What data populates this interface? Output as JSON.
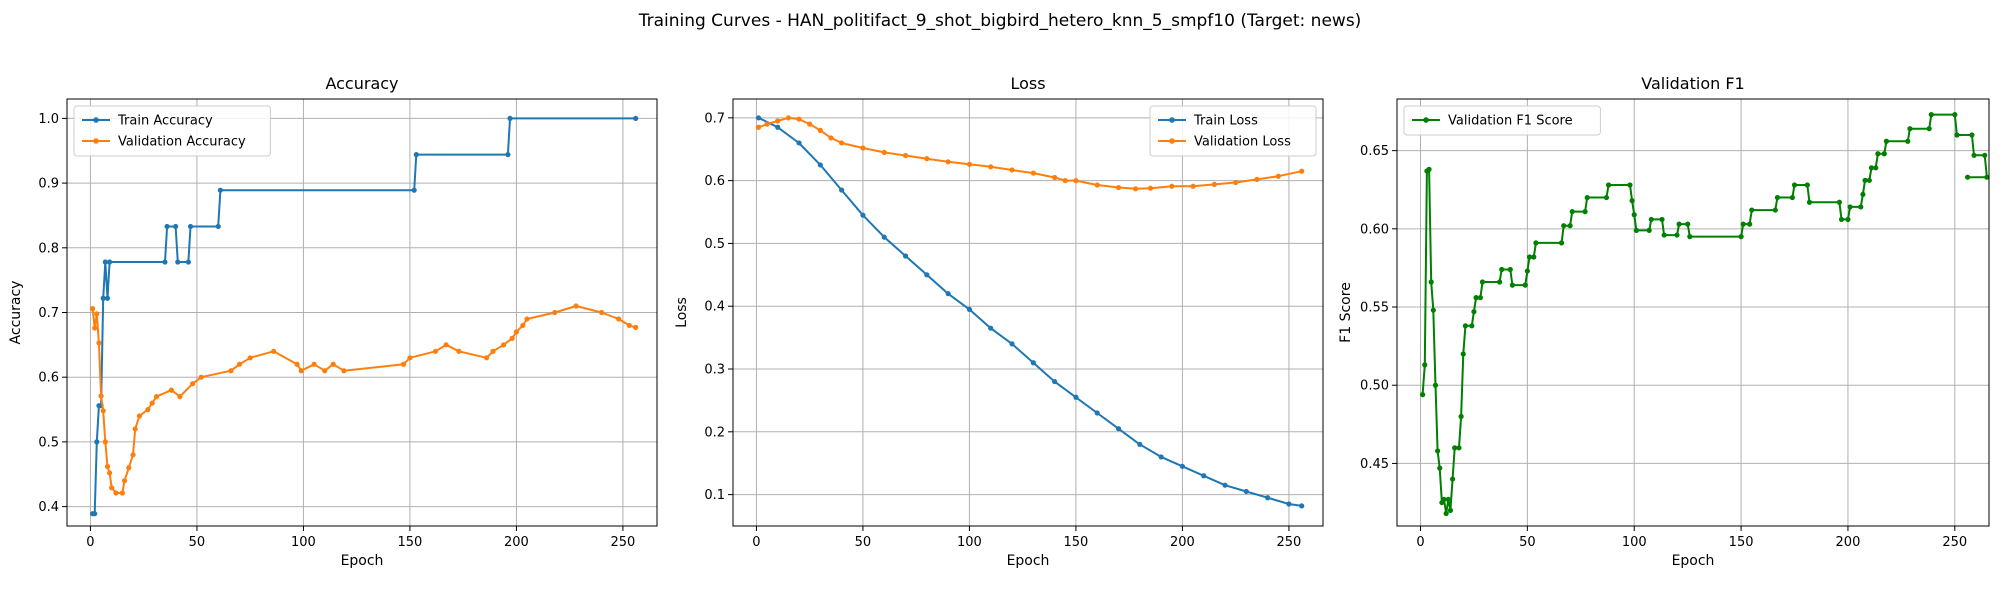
{
  "figure": {
    "suptitle": "Training Curves - HAN_politifact_9_shot_bigbird_hetero_knn_5_smpf10 (Target: news)"
  },
  "colors": {
    "train": "#1f77b4",
    "validation": "#ff7f0e",
    "f1": "#008000",
    "grid": "#b0b0b0"
  },
  "chart_data": [
    {
      "type": "line",
      "title": "Accuracy",
      "xlabel": "Epoch",
      "ylabel": "Accuracy",
      "xlim": [
        -11,
        266
      ],
      "ylim": [
        0.37,
        1.03
      ],
      "xticks": [
        0,
        50,
        100,
        150,
        200,
        250
      ],
      "yticks": [
        0.4,
        0.5,
        0.6,
        0.7,
        0.8,
        0.9,
        1.0
      ],
      "ytick_labels": [
        "0.4",
        "0.5",
        "0.6",
        "0.7",
        "0.8",
        "0.9",
        "1.0"
      ],
      "grid": true,
      "legend_position": "top-left",
      "series": [
        {
          "name": "Train Accuracy",
          "color": "#1f77b4",
          "points": [
            [
              1,
              0.389
            ],
            [
              2,
              0.389
            ],
            [
              3,
              0.5
            ],
            [
              4,
              0.556
            ],
            [
              5,
              0.556
            ],
            [
              6,
              0.722
            ],
            [
              7,
              0.778
            ],
            [
              8,
              0.722
            ],
            [
              9,
              0.778
            ],
            [
              35,
              0.778
            ],
            [
              36,
              0.833
            ],
            [
              40,
              0.833
            ],
            [
              41,
              0.778
            ],
            [
              46,
              0.778
            ],
            [
              47,
              0.833
            ],
            [
              60,
              0.833
            ],
            [
              61,
              0.889
            ],
            [
              152,
              0.889
            ],
            [
              153,
              0.944
            ],
            [
              196,
              0.944
            ],
            [
              197,
              1.0
            ],
            [
              256,
              1.0
            ]
          ]
        },
        {
          "name": "Validation Accuracy",
          "color": "#ff7f0e",
          "points": [
            [
              1,
              0.706
            ],
            [
              2,
              0.676
            ],
            [
              3,
              0.698
            ],
            [
              4,
              0.653
            ],
            [
              5,
              0.571
            ],
            [
              6,
              0.548
            ],
            [
              7,
              0.5
            ],
            [
              8,
              0.462
            ],
            [
              9,
              0.452
            ],
            [
              10,
              0.429
            ],
            [
              12,
              0.421
            ],
            [
              15,
              0.421
            ],
            [
              16,
              0.44
            ],
            [
              18,
              0.46
            ],
            [
              20,
              0.48
            ],
            [
              21,
              0.52
            ],
            [
              23,
              0.54
            ],
            [
              27,
              0.55
            ],
            [
              29,
              0.56
            ],
            [
              31,
              0.57
            ],
            [
              38,
              0.58
            ],
            [
              42,
              0.57
            ],
            [
              48,
              0.59
            ],
            [
              52,
              0.6
            ],
            [
              66,
              0.61
            ],
            [
              70,
              0.62
            ],
            [
              75,
              0.63
            ],
            [
              86,
              0.64
            ],
            [
              97,
              0.62
            ],
            [
              99,
              0.61
            ],
            [
              105,
              0.62
            ],
            [
              110,
              0.61
            ],
            [
              114,
              0.62
            ],
            [
              119,
              0.61
            ],
            [
              147,
              0.62
            ],
            [
              150,
              0.63
            ],
            [
              162,
              0.64
            ],
            [
              167,
              0.65
            ],
            [
              173,
              0.64
            ],
            [
              186,
              0.63
            ],
            [
              189,
              0.64
            ],
            [
              194,
              0.65
            ],
            [
              198,
              0.66
            ],
            [
              200,
              0.67
            ],
            [
              203,
              0.68
            ],
            [
              205,
              0.69
            ],
            [
              218,
              0.7
            ],
            [
              228,
              0.71
            ],
            [
              240,
              0.7
            ],
            [
              248,
              0.69
            ],
            [
              253,
              0.68
            ],
            [
              256,
              0.677
            ]
          ]
        }
      ]
    },
    {
      "type": "line",
      "title": "Loss",
      "xlabel": "Epoch",
      "ylabel": "Loss",
      "xlim": [
        -11,
        266
      ],
      "ylim": [
        0.05,
        0.73
      ],
      "xticks": [
        0,
        50,
        100,
        150,
        200,
        250
      ],
      "yticks": [
        0.1,
        0.2,
        0.3,
        0.4,
        0.5,
        0.6,
        0.7
      ],
      "ytick_labels": [
        "0.1",
        "0.2",
        "0.3",
        "0.4",
        "0.5",
        "0.6",
        "0.7"
      ],
      "grid": true,
      "legend_position": "top-right",
      "series": [
        {
          "name": "Train Loss",
          "color": "#1f77b4",
          "points": [
            [
              1,
              0.7
            ],
            [
              10,
              0.685
            ],
            [
              20,
              0.66
            ],
            [
              30,
              0.625
            ],
            [
              40,
              0.585
            ],
            [
              50,
              0.545
            ],
            [
              60,
              0.51
            ],
            [
              70,
              0.48
            ],
            [
              80,
              0.45
            ],
            [
              90,
              0.42
            ],
            [
              100,
              0.395
            ],
            [
              110,
              0.365
            ],
            [
              120,
              0.34
            ],
            [
              130,
              0.31
            ],
            [
              140,
              0.28
            ],
            [
              150,
              0.255
            ],
            [
              160,
              0.23
            ],
            [
              170,
              0.205
            ],
            [
              180,
              0.18
            ],
            [
              190,
              0.16
            ],
            [
              200,
              0.145
            ],
            [
              210,
              0.13
            ],
            [
              220,
              0.115
            ],
            [
              230,
              0.105
            ],
            [
              240,
              0.095
            ],
            [
              250,
              0.085
            ],
            [
              256,
              0.082
            ]
          ]
        },
        {
          "name": "Validation Loss",
          "color": "#ff7f0e",
          "points": [
            [
              1,
              0.685
            ],
            [
              5,
              0.69
            ],
            [
              10,
              0.695
            ],
            [
              15,
              0.7
            ],
            [
              20,
              0.698
            ],
            [
              25,
              0.69
            ],
            [
              30,
              0.68
            ],
            [
              35,
              0.668
            ],
            [
              40,
              0.66
            ],
            [
              50,
              0.652
            ],
            [
              60,
              0.645
            ],
            [
              70,
              0.64
            ],
            [
              80,
              0.635
            ],
            [
              90,
              0.63
            ],
            [
              100,
              0.626
            ],
            [
              110,
              0.622
            ],
            [
              120,
              0.617
            ],
            [
              130,
              0.612
            ],
            [
              140,
              0.605
            ],
            [
              145,
              0.6
            ],
            [
              150,
              0.6
            ],
            [
              160,
              0.593
            ],
            [
              170,
              0.589
            ],
            [
              178,
              0.587
            ],
            [
              185,
              0.588
            ],
            [
              195,
              0.591
            ],
            [
              205,
              0.591
            ],
            [
              215,
              0.594
            ],
            [
              225,
              0.597
            ],
            [
              235,
              0.602
            ],
            [
              245,
              0.607
            ],
            [
              256,
              0.615
            ]
          ]
        }
      ]
    },
    {
      "type": "line",
      "title": "Validation F1",
      "xlabel": "Epoch",
      "ylabel": "F1 Score",
      "xlim": [
        -11,
        266
      ],
      "ylim": [
        0.41,
        0.683
      ],
      "xticks": [
        0,
        50,
        100,
        150,
        200,
        250
      ],
      "yticks": [
        0.45,
        0.5,
        0.55,
        0.6,
        0.65
      ],
      "ytick_labels": [
        "0.45",
        "0.50",
        "0.55",
        "0.60",
        "0.65"
      ],
      "grid": true,
      "legend_position": "top-left",
      "series": [
        {
          "name": "Validation F1 Score",
          "color": "#008000",
          "points": [
            [
              1,
              0.494
            ],
            [
              2,
              0.513
            ],
            [
              3,
              0.637
            ],
            [
              4,
              0.638
            ],
            [
              5,
              0.566
            ],
            [
              6,
              0.548
            ],
            [
              7,
              0.5
            ],
            [
              8,
              0.458
            ],
            [
              9,
              0.447
            ],
            [
              10,
              0.425
            ],
            [
              11,
              0.427
            ],
            [
              12,
              0.418
            ],
            [
              13,
              0.427
            ],
            [
              14,
              0.42
            ],
            [
              15,
              0.44
            ],
            [
              16,
              0.46
            ],
            [
              18,
              0.46
            ],
            [
              19,
              0.48
            ],
            [
              20,
              0.52
            ],
            [
              21,
              0.538
            ],
            [
              24,
              0.538
            ],
            [
              25,
              0.547
            ],
            [
              26,
              0.556
            ],
            [
              28,
              0.556
            ],
            [
              29,
              0.566
            ],
            [
              37,
              0.566
            ],
            [
              38,
              0.574
            ],
            [
              42,
              0.574
            ],
            [
              43,
              0.564
            ],
            [
              49,
              0.564
            ],
            [
              50,
              0.573
            ],
            [
              51,
              0.582
            ],
            [
              53,
              0.582
            ],
            [
              54,
              0.591
            ],
            [
              66,
              0.591
            ],
            [
              67,
              0.602
            ],
            [
              70,
              0.602
            ],
            [
              71,
              0.611
            ],
            [
              77,
              0.611
            ],
            [
              78,
              0.62
            ],
            [
              87,
              0.62
            ],
            [
              88,
              0.628
            ],
            [
              98,
              0.628
            ],
            [
              99,
              0.618
            ],
            [
              100,
              0.609
            ],
            [
              101,
              0.599
            ],
            [
              107,
              0.599
            ],
            [
              108,
              0.606
            ],
            [
              113,
              0.606
            ],
            [
              114,
              0.596
            ],
            [
              120,
              0.596
            ],
            [
              121,
              0.603
            ],
            [
              125,
              0.603
            ],
            [
              126,
              0.595
            ],
            [
              150,
              0.595
            ],
            [
              151,
              0.603
            ],
            [
              154,
              0.603
            ],
            [
              155,
              0.612
            ],
            [
              166,
              0.612
            ],
            [
              167,
              0.62
            ],
            [
              174,
              0.62
            ],
            [
              175,
              0.628
            ],
            [
              181,
              0.628
            ],
            [
              182,
              0.617
            ],
            [
              196,
              0.617
            ],
            [
              197,
              0.606
            ],
            [
              200,
              0.606
            ],
            [
              201,
              0.614
            ],
            [
              206,
              0.614
            ],
            [
              207,
              0.622
            ],
            [
              208,
              0.631
            ],
            [
              210,
              0.631
            ],
            [
              211,
              0.639
            ],
            [
              213,
              0.639
            ],
            [
              214,
              0.648
            ],
            [
              217,
              0.648
            ],
            [
              218,
              0.656
            ],
            [
              228,
              0.656
            ],
            [
              229,
              0.664
            ],
            [
              238,
              0.664
            ],
            [
              239,
              0.673
            ],
            [
              250,
              0.673
            ],
            [
              251,
              0.66
            ],
            [
              258,
              0.66
            ],
            [
              259,
              0.647
            ],
            [
              264,
              0.647
            ],
            [
              265,
              0.633
            ],
            [
              256,
              0.633
            ]
          ]
        }
      ]
    }
  ]
}
